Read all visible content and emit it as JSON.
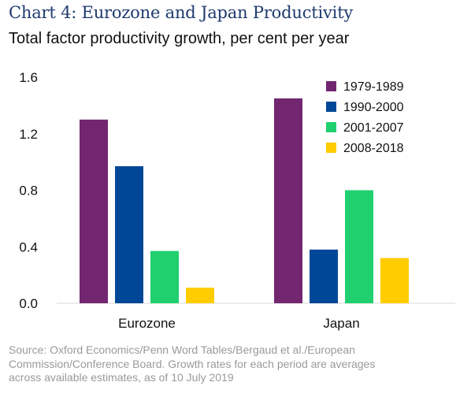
{
  "title": "Chart 4: Eurozone and Japan Productivity",
  "subtitle": "Total factor productivity growth, per cent per year",
  "source_lines": [
    "Source: Oxford Economics/Penn Word Tables/Bergaud et al./European",
    "Commission/Conference Board. Growth rates for each period are averages",
    "across available estimates, as of 10 July 2019"
  ],
  "chart_data": {
    "type": "bar",
    "categories": [
      "Eurozone",
      "Japan"
    ],
    "series": [
      {
        "name": "1979-1989",
        "color": "#722670",
        "values": [
          1.3,
          1.45
        ]
      },
      {
        "name": "1990-2000",
        "color": "#004897",
        "values": [
          0.97,
          0.38
        ]
      },
      {
        "name": "2001-2007",
        "color": "#20d06f",
        "values": [
          0.37,
          0.8
        ]
      },
      {
        "name": "2008-2018",
        "color": "#ffcc00",
        "values": [
          0.11,
          0.32
        ]
      }
    ],
    "yticks": [
      "0.0",
      "0.4",
      "0.8",
      "1.2",
      "1.6"
    ],
    "ylim": [
      0,
      1.6
    ],
    "grid": false,
    "legend_position": "top-right"
  }
}
